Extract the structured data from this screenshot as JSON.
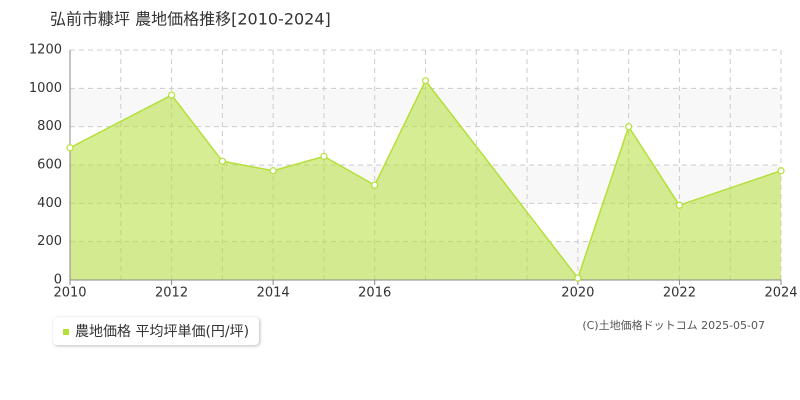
{
  "chart_data": {
    "type": "area",
    "title": "弘前市糠坪 農地価格推移[2010-2024]",
    "series": [
      {
        "name": "農地価格 平均坪単価(円/坪)",
        "color": "#b5df3a",
        "x": [
          2010,
          2012,
          2013,
          2014,
          2015,
          2016,
          2017,
          2020,
          2021,
          2022,
          2024
        ],
        "values": [
          690,
          965,
          620,
          570,
          645,
          495,
          1040,
          10,
          800,
          390,
          570
        ]
      }
    ],
    "xlim": [
      2010,
      2024
    ],
    "xticks": [
      2010,
      2012,
      2014,
      2016,
      2020,
      2022,
      2024
    ],
    "xgrid": [
      2010,
      2011,
      2012,
      2013,
      2014,
      2015,
      2016,
      2017,
      2018,
      2019,
      2020,
      2021,
      2022,
      2023,
      2024
    ],
    "ylim": [
      0,
      1200
    ],
    "yticks": [
      0,
      200,
      400,
      600,
      800,
      1000,
      1200
    ],
    "grid": true,
    "copyright": "(C)土地価格ドットコム 2025-05-07"
  }
}
